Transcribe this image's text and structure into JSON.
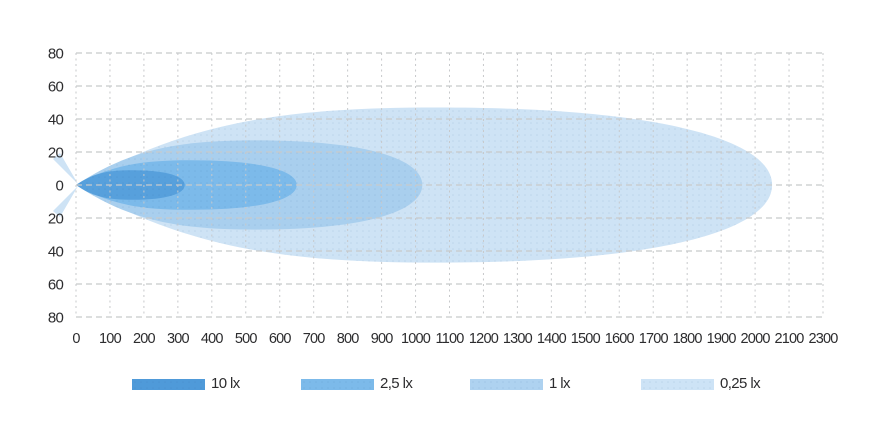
{
  "chart_data": {
    "type": "area",
    "title": "",
    "description": "isolux-beam-pattern-chart",
    "grid": true,
    "x_axis": {
      "tick_labels": [
        "0",
        "100",
        "200",
        "300",
        "400",
        "500",
        "600",
        "700",
        "800",
        "900",
        "1000",
        "1100",
        "1200",
        "1300",
        "1400",
        "1500",
        "1600",
        "1700",
        "1800",
        "1900",
        "2000",
        "2100",
        "2300"
      ],
      "units_per_tick": 100
    },
    "y_axis": {
      "tick_labels": [
        "80",
        "60",
        "40",
        "20",
        "0",
        "20",
        "40",
        "60",
        "80"
      ],
      "units_per_tick": 20
    },
    "series": [
      {
        "name": "10 lx",
        "reach": 320,
        "half_width": 9,
        "color": "#57a0dc"
      },
      {
        "name": "2,5 lx",
        "reach": 650,
        "half_width": 15,
        "color": "#7cbaea"
      },
      {
        "name": "1 lx",
        "reach": 1020,
        "half_width": 27,
        "color": "#a9cfee"
      },
      {
        "name": "0,25 lx",
        "reach": 2050,
        "half_width": 47,
        "color": "#cee3f5"
      }
    ],
    "legend": {
      "position": "bottom",
      "items": [
        {
          "label": "10 lx",
          "color": "#4f9ad9"
        },
        {
          "label": "2,5 lx",
          "color": "#7cbaea"
        },
        {
          "label": "1 lx",
          "color": "#aed2f0"
        },
        {
          "label": "0,25 lx",
          "color": "#cde3f6"
        }
      ]
    },
    "colors": {
      "grid": "#c7c9cb",
      "text": "#2c2c2e",
      "background": "#ffffff"
    }
  }
}
